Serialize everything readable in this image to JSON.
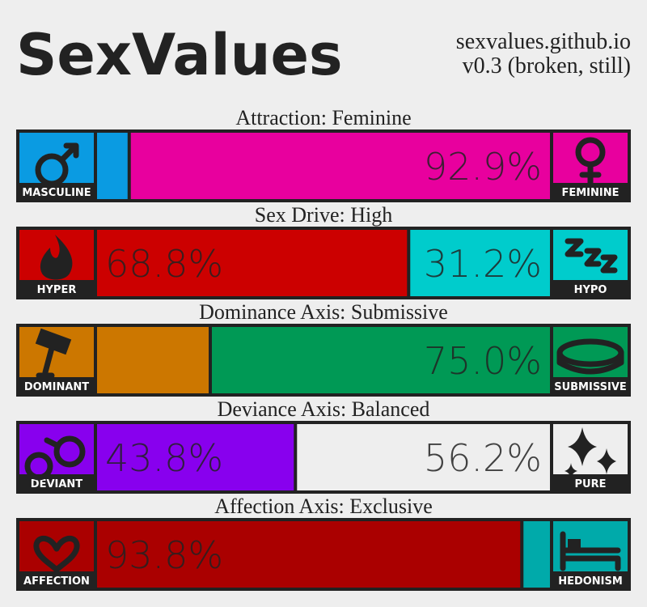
{
  "header": {
    "title": "SexValues",
    "site": "sexvalues.github.io",
    "version": "v0.3 (broken, still)"
  },
  "axes": [
    {
      "title": "Attraction: Feminine",
      "left": {
        "name": "MASCULINE",
        "color": "#0a9be2",
        "value": 7.1
      },
      "right": {
        "name": "FEMININE",
        "color": "#e8009e",
        "value": 92.9,
        "value_label": "92.9%"
      }
    },
    {
      "title": "Sex Drive: High",
      "left": {
        "name": "HYPER",
        "color": "#cc0000",
        "value": 68.8,
        "value_label": "68.8%"
      },
      "right": {
        "name": "HYPO",
        "color": "#00cccc",
        "value": 31.2,
        "value_label": "31.2%"
      }
    },
    {
      "title": "Dominance Axis: Submissive",
      "left": {
        "name": "DOMINANT",
        "color": "#cc7700",
        "value": 25.0
      },
      "right": {
        "name": "SUBMISSIVE",
        "color": "#009955",
        "value": 75.0,
        "value_label": "75.0%"
      }
    },
    {
      "title": "Deviance Axis: Balanced",
      "left": {
        "name": "DEVIANT",
        "color": "#8800ee",
        "value": 43.8,
        "value_label": "43.8%"
      },
      "right": {
        "name": "PURE",
        "color": "#eeeeee",
        "value": 56.2,
        "value_label": "56.2%"
      }
    },
    {
      "title": "Affection Axis: Exclusive",
      "left": {
        "name": "AFFECTION",
        "color": "#aa0000",
        "value": 93.8,
        "value_label": "93.8%"
      },
      "right": {
        "name": "HEDONISM",
        "color": "#00aaaa",
        "value": 6.2
      }
    }
  ]
}
